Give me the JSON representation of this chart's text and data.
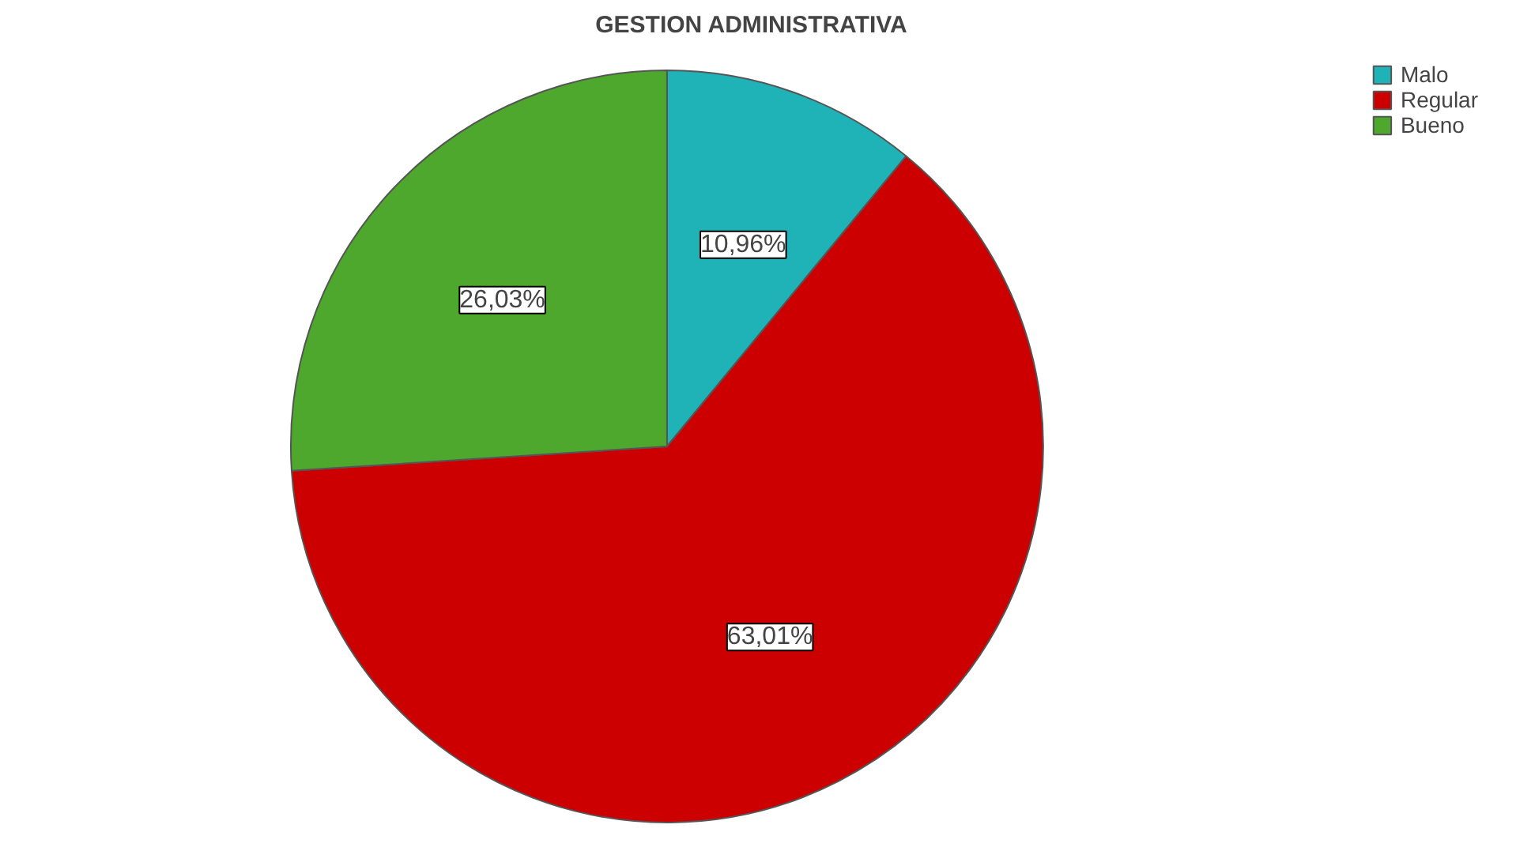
{
  "chart_data": {
    "type": "pie",
    "title": "GESTION ADMINISTRATIVA",
    "categories": [
      "Malo",
      "Regular",
      "Bueno"
    ],
    "values": [
      10.96,
      63.01,
      26.03
    ],
    "colors": [
      "#1fb3b8",
      "#cc0000",
      "#4ea82e"
    ],
    "value_labels": [
      "10,96%",
      "63,01%",
      "26,03%"
    ],
    "legend": "top right"
  }
}
